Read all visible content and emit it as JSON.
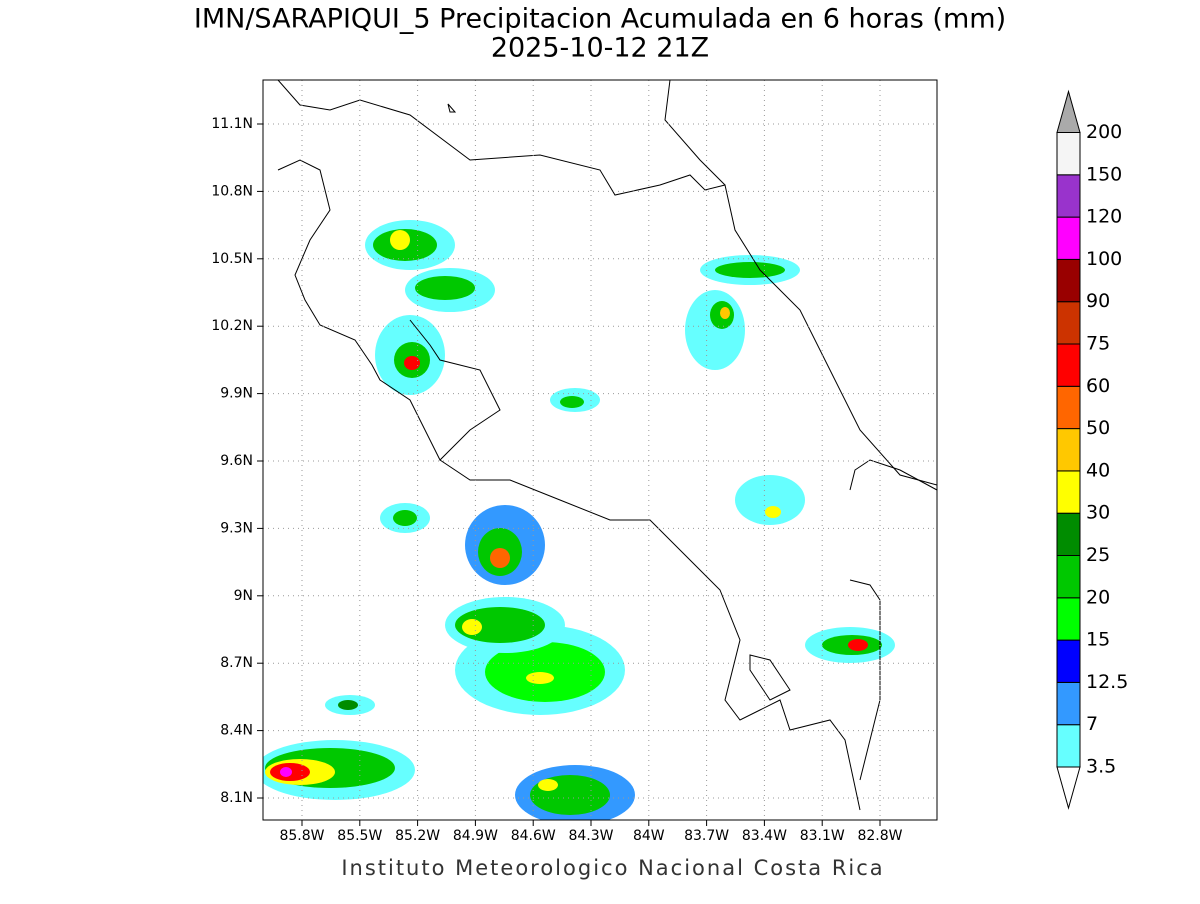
{
  "title": "IMN/SARAPIQUI_5 Precipitacion Acumulada en 6 horas (mm)",
  "subtitle": "2025-10-12 21Z",
  "map": {
    "lat_labels": [
      "11.1N",
      "10.8N",
      "10.5N",
      "10.2N",
      "9.9N",
      "9.6N",
      "9.3N",
      "9N",
      "8.7N",
      "8.4N",
      "8.1N"
    ],
    "lon_labels": [
      "85.8W",
      "85.5W",
      "85.2W",
      "84.9W",
      "84.6W",
      "84.3W",
      "84W",
      "83.7W",
      "83.4W",
      "83.1W",
      "82.8W"
    ]
  },
  "colorbar": {
    "levels": [
      "3.5",
      "7",
      "12.5",
      "15",
      "20",
      "25",
      "30",
      "40",
      "50",
      "60",
      "75",
      "90",
      "100",
      "120",
      "150",
      "200"
    ],
    "colors": [
      "#66ffff",
      "#3399ff",
      "#0000ff",
      "#00ff00",
      "#00c800",
      "#008c00",
      "#ffff00",
      "#ffc800",
      "#ff6600",
      "#ff0000",
      "#cc3300",
      "#990000",
      "#ff00ff",
      "#9933cc",
      "#f5f5f5"
    ],
    "below_color": "#ffffff",
    "above_color": "#aaaaaa"
  },
  "footer": "Instituto Meteorologico Nacional Costa Rica"
}
